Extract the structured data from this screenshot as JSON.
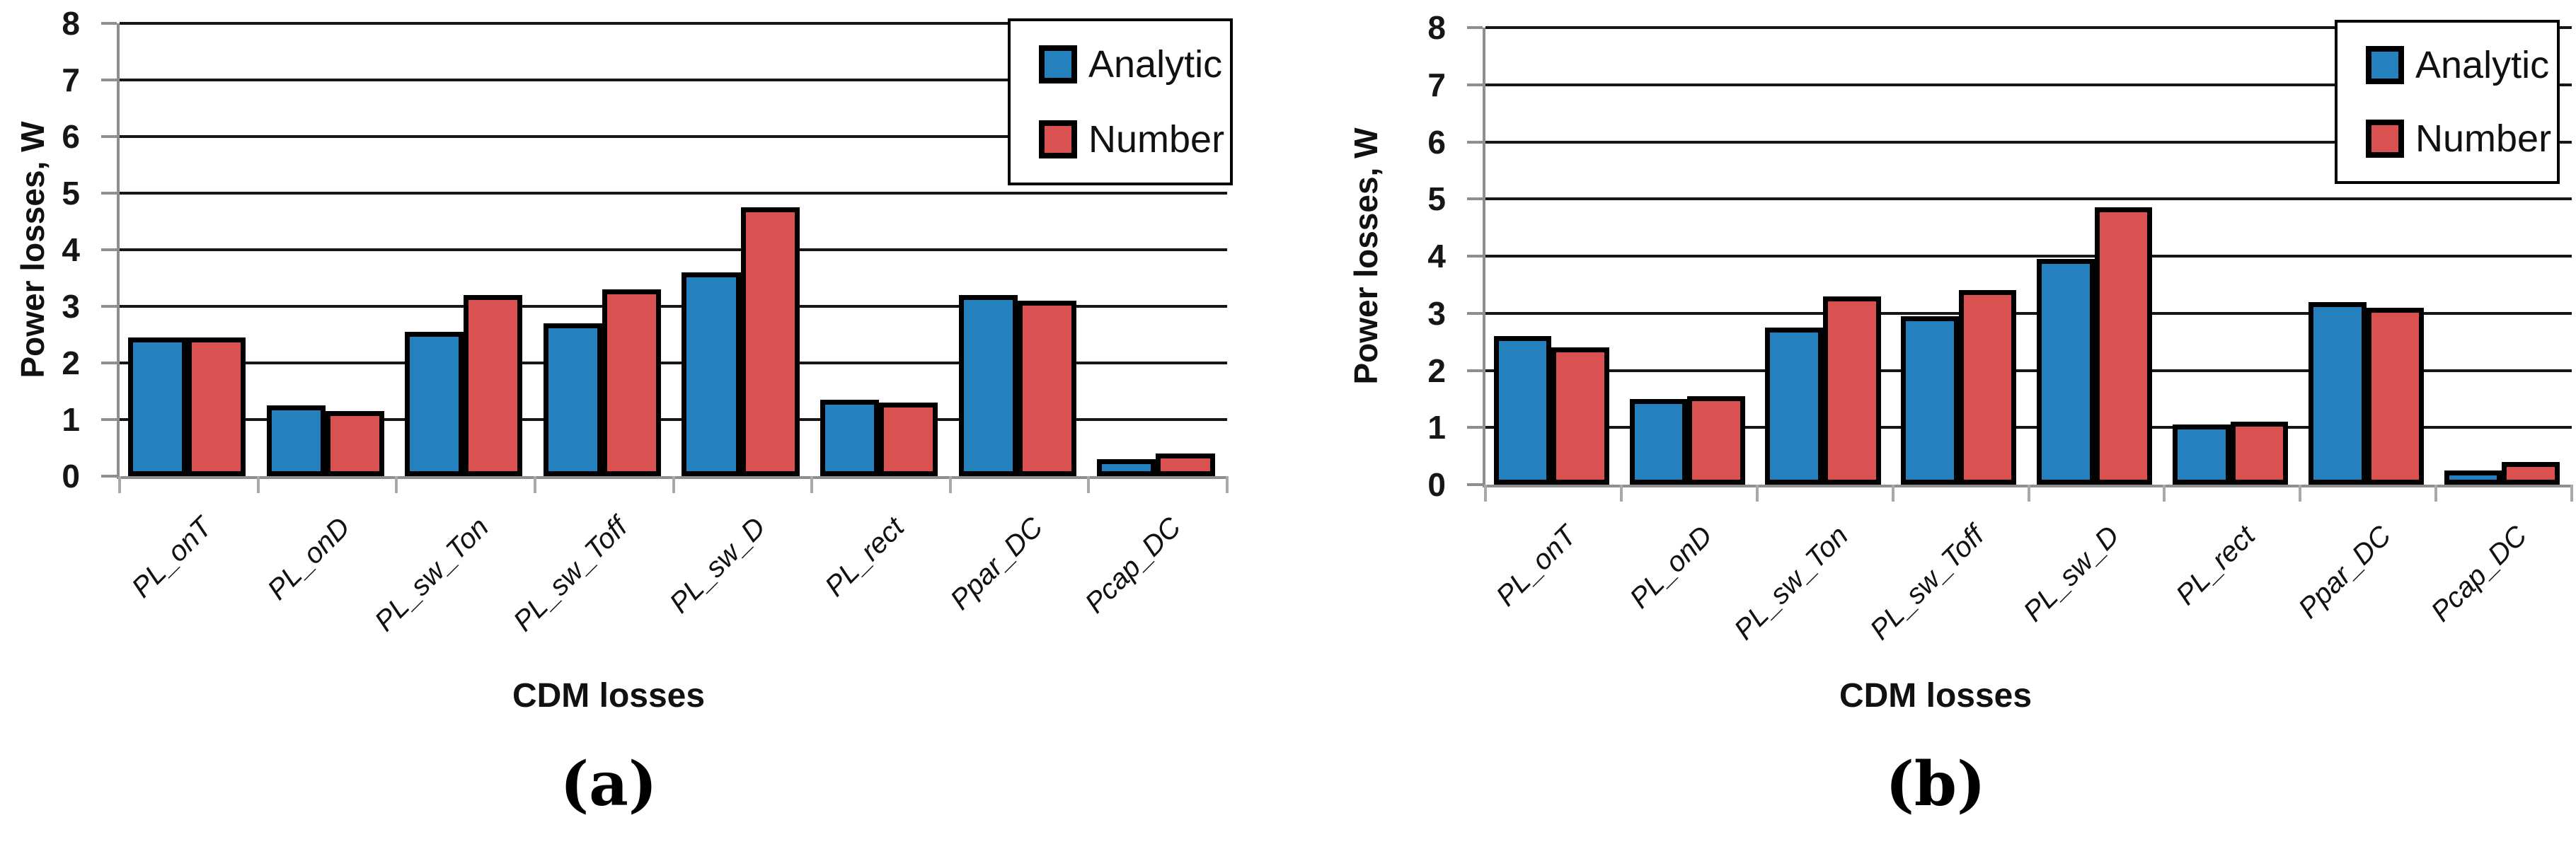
{
  "figure": {
    "description": "Two side-by-side bar charts comparing analytic and numeric CDM power loss components",
    "panels": [
      {
        "caption": "(a)"
      },
      {
        "caption": "(b)"
      }
    ]
  },
  "chart_data": [
    {
      "type": "bar",
      "panel_label": "(a)",
      "title": "",
      "xlabel": "CDM losses",
      "ylabel": "Power losses, W",
      "categories": [
        "PL_onT",
        "PL_onD",
        "PL_sw_Ton",
        "PL_sw_Toff",
        "PL_sw_D",
        "PL_rect",
        "Ppar_DC",
        "Pcap_DC"
      ],
      "series": [
        {
          "name": "Analytic",
          "color": "#2580BE",
          "values": [
            2.45,
            1.25,
            2.55,
            2.7,
            3.6,
            1.35,
            3.2,
            0.3
          ]
        },
        {
          "name": "Number",
          "color": "#D95151",
          "values": [
            2.45,
            1.15,
            3.2,
            3.3,
            4.75,
            1.3,
            3.1,
            0.4
          ]
        }
      ],
      "ylim": [
        0,
        8
      ],
      "yticks": [
        0,
        1,
        2,
        3,
        4,
        5,
        6,
        7,
        8
      ],
      "grid": true,
      "legend_position": "top-right"
    },
    {
      "type": "bar",
      "panel_label": "(b)",
      "title": "",
      "xlabel": "CDM losses",
      "ylabel": "Power losses, W",
      "categories": [
        "PL_onT",
        "PL_onD",
        "PL_sw_Ton",
        "PL_sw_Toff",
        "PL_sw_D",
        "PL_rect",
        "Ppar_DC",
        "Pcap_DC"
      ],
      "series": [
        {
          "name": "Analytic",
          "color": "#2580BE",
          "values": [
            2.6,
            1.5,
            2.75,
            2.95,
            3.95,
            1.05,
            3.2,
            0.25
          ]
        },
        {
          "name": "Number",
          "color": "#D95151",
          "values": [
            2.4,
            1.55,
            3.3,
            3.4,
            4.85,
            1.1,
            3.1,
            0.4
          ]
        }
      ],
      "ylim": [
        0,
        8
      ],
      "yticks": [
        0,
        1,
        2,
        3,
        4,
        5,
        6,
        7,
        8
      ],
      "grid": true,
      "legend_position": "top-right"
    }
  ]
}
